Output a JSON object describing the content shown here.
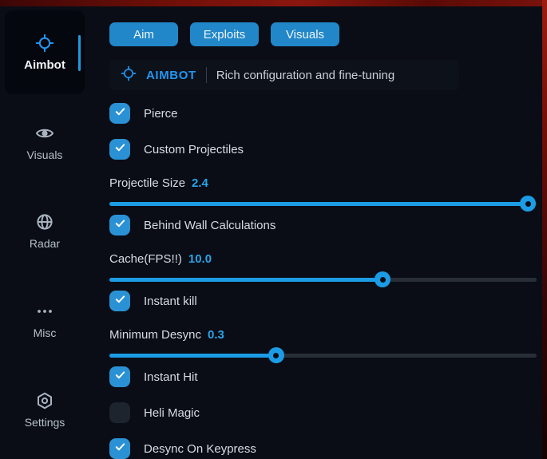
{
  "colors": {
    "accent_blue": "#1b9ce5",
    "tab_blue": "#2187c9",
    "checkbox_blue": "#2a92d4",
    "title_blue": "#2196f3",
    "background": "#0a0d16",
    "edge_red": "#8a170f"
  },
  "sidebar": {
    "items": [
      {
        "label": "Aimbot",
        "icon": "crosshair-icon",
        "active": true
      },
      {
        "label": "Visuals",
        "icon": "eye-icon",
        "active": false
      },
      {
        "label": "Radar",
        "icon": "globe-icon",
        "active": false
      },
      {
        "label": "Misc",
        "icon": "ellipsis-icon",
        "active": false
      },
      {
        "label": "Settings",
        "icon": "gear-icon",
        "active": false
      }
    ]
  },
  "tabs": [
    {
      "label": "Aim"
    },
    {
      "label": "Exploits"
    },
    {
      "label": "Visuals"
    }
  ],
  "header": {
    "icon": "crosshair-icon",
    "title": "AIMBOT",
    "subtitle": "Rich configuration and fine-tuning"
  },
  "controls": [
    {
      "type": "checkbox",
      "label": "Pierce",
      "checked": true
    },
    {
      "type": "checkbox",
      "label": "Custom Projectiles",
      "checked": true
    },
    {
      "type": "slider",
      "label": "Projectile Size",
      "value": "2.4",
      "percent": 98
    },
    {
      "type": "checkbox",
      "label": "Behind Wall Calculations",
      "checked": true
    },
    {
      "type": "slider",
      "label": "Cache(FPS!!)",
      "value": "10.0",
      "percent": 64
    },
    {
      "type": "checkbox",
      "label": "Instant kill",
      "checked": true
    },
    {
      "type": "slider",
      "label": "Minimum Desync",
      "value": "0.3",
      "percent": 39
    },
    {
      "type": "checkbox",
      "label": "Instant Hit",
      "checked": true
    },
    {
      "type": "checkbox",
      "label": "Heli Magic",
      "checked": false
    },
    {
      "type": "checkbox",
      "label": "Desync On Keypress",
      "checked": true
    }
  ]
}
